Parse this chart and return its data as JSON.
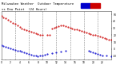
{
  "title": "Milwaukee Weather  Outdoor Temp",
  "subtitle": "vs Dew Point  (24 Hours)",
  "title_fontsize": 3.5,
  "background_color": "#ffffff",
  "plot_bg_color": "#ffffff",
  "grid_color": "#888888",
  "ylim": [
    -15,
    55
  ],
  "xlim": [
    0,
    24
  ],
  "ytick_labels": [
    "50",
    "40",
    "30",
    "20",
    "10",
    "0",
    "-10"
  ],
  "ytick_vals": [
    50,
    40,
    30,
    20,
    10,
    0,
    -10
  ],
  "temp_color": "#cc0000",
  "dew_color": "#0000cc",
  "temp_x": [
    0.0,
    0.5,
    1.0,
    1.5,
    2.0,
    2.5,
    3.0,
    3.5,
    4.0,
    4.5,
    5.0,
    5.5,
    6.0,
    6.5,
    7.0,
    7.5,
    8.0,
    8.5,
    9.0,
    10.0,
    10.5,
    11.0,
    11.5,
    12.0,
    12.5,
    13.0,
    13.5,
    14.0,
    14.5,
    15.0,
    15.5,
    16.0,
    16.5,
    17.0,
    17.5,
    18.0,
    18.5,
    19.0,
    19.5,
    20.0,
    20.5,
    21.0,
    21.5,
    22.0,
    22.5,
    23.0,
    23.5,
    24.0
  ],
  "temp_y": [
    48,
    46,
    44,
    42,
    40,
    38,
    36,
    34,
    32,
    30,
    28,
    27,
    26,
    25,
    24,
    23,
    22,
    21,
    20,
    20,
    21,
    30,
    31,
    32,
    33,
    34,
    34,
    33,
    32,
    31,
    30,
    29,
    28,
    27,
    26,
    25,
    24,
    23,
    22,
    21,
    20,
    19,
    18,
    17,
    16,
    15,
    14,
    13
  ],
  "dew_x": [
    0.0,
    0.5,
    1.0,
    1.5,
    2.0,
    2.5,
    3.0,
    3.5,
    4.0,
    4.5,
    5.0,
    5.5,
    6.0,
    6.5,
    7.0,
    7.5,
    8.0,
    8.5,
    9.0,
    9.5,
    10.0,
    11.0,
    12.0,
    13.0,
    14.0,
    19.0,
    19.5,
    20.0,
    20.5,
    21.0,
    21.5,
    22.0,
    23.0,
    24.0
  ],
  "dew_y": [
    5,
    4,
    3,
    2,
    1,
    0,
    -1,
    -2,
    -3,
    -4,
    -5,
    -6,
    -7,
    -8,
    -9,
    -10,
    -11,
    -10,
    -9,
    -8,
    -7,
    -6,
    -5,
    -4,
    -3,
    -3,
    -4,
    -5,
    -6,
    -7,
    -8,
    -9,
    -10,
    -11
  ],
  "vgrid_x": [
    3,
    6,
    9,
    12,
    15,
    18,
    21
  ],
  "xtick_vals": [
    0,
    1,
    2,
    3,
    4,
    5,
    6,
    7,
    8,
    9,
    10,
    11,
    12,
    13,
    14,
    15,
    16,
    17,
    18,
    19,
    20,
    21,
    22,
    23
  ],
  "xtick_labels": [
    "0",
    "",
    "2",
    "",
    "4",
    "",
    "6",
    "",
    "8",
    "",
    "10",
    "",
    "12",
    "",
    "14",
    "",
    "16",
    "",
    "18",
    "",
    "20",
    "",
    "22",
    ""
  ]
}
